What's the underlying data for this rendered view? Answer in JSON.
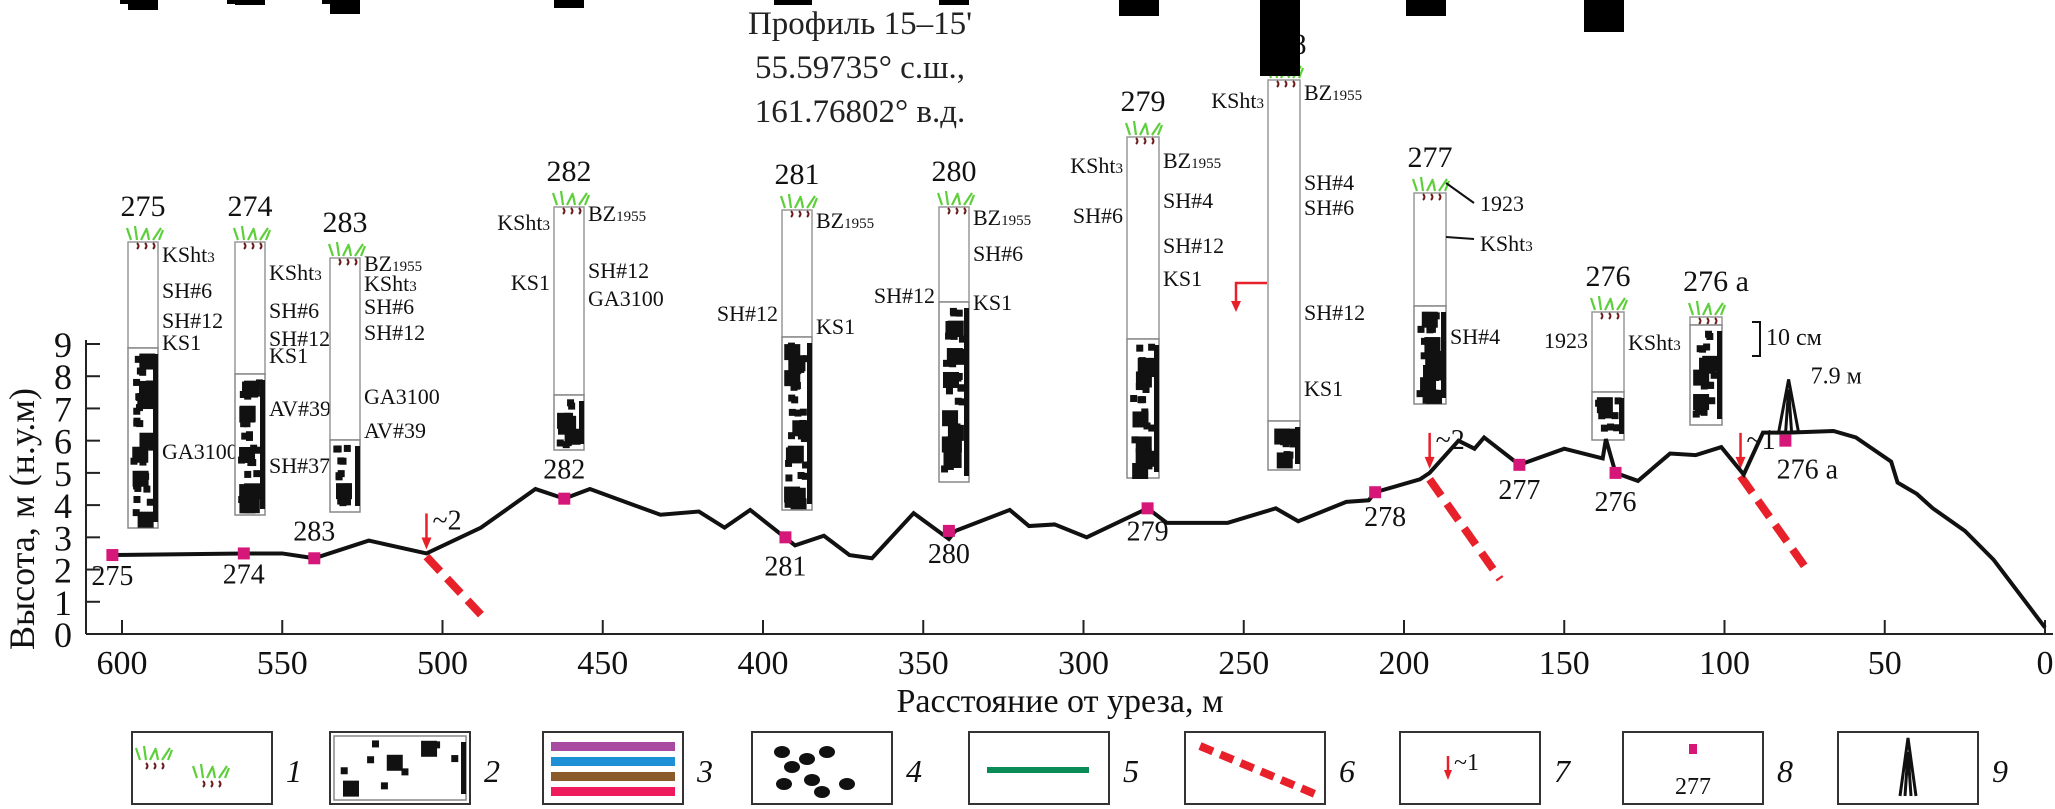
{
  "title": {
    "line1": "Профиль 15–15'",
    "line2": "55.59735° с.ш.,",
    "line3": "161.76802° в.д."
  },
  "chart_data": {
    "type": "line",
    "title": "Профиль 15–15' 55.59735° с.ш., 161.76802° в.д.",
    "xlabel": "Расстояние от уреза, м",
    "ylabel": "Высота, м (н.у.м)",
    "xlim": [
      600,
      0
    ],
    "ylim": [
      0,
      9
    ],
    "x_reversed": true,
    "xticks": [
      600,
      550,
      500,
      450,
      400,
      350,
      300,
      250,
      200,
      150,
      100,
      50,
      0
    ],
    "yticks": [
      0,
      1,
      2,
      3,
      4,
      5,
      6,
      7,
      8,
      9
    ],
    "grid": false,
    "series": [
      {
        "name": "profile",
        "color": "#111111",
        "points": [
          [
            603,
            2.45
          ],
          [
            562,
            2.5
          ],
          [
            550,
            2.5
          ],
          [
            540,
            2.35
          ],
          [
            523,
            2.9
          ],
          [
            505,
            2.5
          ],
          [
            488,
            3.3
          ],
          [
            471,
            4.5
          ],
          [
            462,
            4.2
          ],
          [
            454,
            4.5
          ],
          [
            432,
            3.7
          ],
          [
            420,
            3.8
          ],
          [
            412,
            3.3
          ],
          [
            404,
            3.85
          ],
          [
            390,
            2.75
          ],
          [
            381,
            3.05
          ],
          [
            373,
            2.45
          ],
          [
            366,
            2.35
          ],
          [
            353,
            3.75
          ],
          [
            342,
            2.95
          ],
          [
            340,
            3.2
          ],
          [
            323,
            3.85
          ],
          [
            317,
            3.35
          ],
          [
            309,
            3.4
          ],
          [
            299,
            3.0
          ],
          [
            280,
            3.9
          ],
          [
            274,
            3.45
          ],
          [
            255,
            3.45
          ],
          [
            240,
            3.9
          ],
          [
            233,
            3.5
          ],
          [
            218,
            4.1
          ],
          [
            211,
            4.15
          ],
          [
            209,
            4.4
          ],
          [
            195,
            4.8
          ],
          [
            192,
            5.0
          ],
          [
            183,
            6.0
          ],
          [
            178,
            5.75
          ],
          [
            175,
            6.1
          ],
          [
            164,
            5.25
          ],
          [
            150,
            5.75
          ],
          [
            138,
            5.45
          ],
          [
            137,
            6.05
          ],
          [
            134,
            5.0
          ],
          [
            127,
            4.75
          ],
          [
            117,
            5.6
          ],
          [
            109,
            5.55
          ],
          [
            101,
            5.8
          ],
          [
            94,
            4.95
          ],
          [
            88,
            6.25
          ],
          [
            80,
            6.25
          ],
          [
            66,
            6.3
          ],
          [
            59,
            6.1
          ],
          [
            48,
            5.35
          ],
          [
            46,
            4.7
          ],
          [
            40,
            4.35
          ],
          [
            35,
            3.9
          ],
          [
            25,
            3.2
          ],
          [
            16,
            2.3
          ],
          [
            0,
            0.2
          ]
        ]
      }
    ],
    "sites": [
      {
        "label": "275",
        "x": 603,
        "y": 2.45
      },
      {
        "label": "274",
        "x": 562,
        "y": 2.5
      },
      {
        "label": "283",
        "x": 540,
        "y": 2.35
      },
      {
        "label": "282",
        "x": 462,
        "y": 4.2
      },
      {
        "label": "281",
        "x": 393,
        "y": 3.0
      },
      {
        "label": "280",
        "x": 342,
        "y": 3.2
      },
      {
        "label": "279",
        "x": 280,
        "y": 3.9
      },
      {
        "label": "278",
        "x": 209,
        "y": 4.4
      },
      {
        "label": "277",
        "x": 164,
        "y": 5.25
      },
      {
        "label": "276",
        "x": 134,
        "y": 5.0
      },
      {
        "label": "276 а",
        "x": 81,
        "y": 6.0
      }
    ],
    "faults": [
      {
        "label": "~2",
        "x": 505,
        "y": 2.5
      },
      {
        "label": "~2",
        "x": 192,
        "y": 5.0
      },
      {
        "label": "~1",
        "x": 95,
        "y": 5.0
      }
    ],
    "peak_annotation": {
      "label": "7.9 м",
      "x": 80,
      "y": 7.9
    },
    "scale_bar": "10 см",
    "columns": [
      {
        "label": "275",
        "x": 590,
        "markers": [
          "KSht3",
          "SH#6",
          "SH#12",
          "KS1",
          "GA3100"
        ]
      },
      {
        "label": "274",
        "x": 555,
        "markers": [
          "KSht3",
          "SH#6",
          "SH#12",
          "KS1",
          "AV#39",
          "SH#37"
        ]
      },
      {
        "label": "283",
        "x": 526,
        "markers": [
          "BZ1955",
          "KSht3",
          "SH#6",
          "SH#12",
          "GA3100",
          "AV#39"
        ]
      },
      {
        "label": "282",
        "x": 462,
        "markers": [
          "BZ1955",
          "KSht3",
          "SH#12",
          "KS1",
          "GA3100"
        ]
      },
      {
        "label": "281",
        "x": 393,
        "markers": [
          "BZ1955",
          "SH#12",
          "KS1"
        ]
      },
      {
        "label": "280",
        "x": 342,
        "markers": [
          "BZ1955",
          "SH#6",
          "SH#12",
          "KS1"
        ]
      },
      {
        "label": "279",
        "x": 280,
        "markers": [
          "BZ1955",
          "KSht3",
          "SH#4",
          "SH#6",
          "SH#12",
          "KS1"
        ]
      },
      {
        "label": "278",
        "x": 231,
        "markers": [
          "BZ1955",
          "KSht3",
          "SH#4",
          "SH#6",
          "SH#12",
          "KS1"
        ]
      },
      {
        "label": "277",
        "x": 164,
        "markers": [
          "1923",
          "KSht3",
          "SH#4"
        ]
      },
      {
        "label": "276",
        "x": 134,
        "markers": [
          "1923",
          "KSht3"
        ]
      },
      {
        "label": "276 а",
        "x": 80,
        "markers": []
      }
    ],
    "legend": [
      {
        "num": "1",
        "desc": "vegetation / soil"
      },
      {
        "num": "2",
        "desc": "coarse deposits"
      },
      {
        "num": "3",
        "desc": "tephra layers",
        "colors": [
          "#a84aa0",
          "#1e90d6",
          "#8b5a2b",
          "#ee1c5c"
        ]
      },
      {
        "num": "4",
        "desc": "pebbles"
      },
      {
        "num": "5",
        "desc": "green line"
      },
      {
        "num": "6",
        "desc": "fault dashed"
      },
      {
        "num": "7",
        "desc": "fault arrow",
        "sample": "~1"
      },
      {
        "num": "8",
        "desc": "site marker",
        "sample": "277"
      },
      {
        "num": "9",
        "desc": "peak marker"
      }
    ]
  },
  "colors": {
    "profile": "#111111",
    "site": "#d6177a",
    "fault": "#e8202a",
    "green": "#0b8c56",
    "blue": "#1e8fd6",
    "red": "#e8202a",
    "brown": "#8b5a2b",
    "purple": "#a84aa0",
    "orange": "#e88a1a",
    "grass": "#5ccf3a",
    "root": "#6b1a1a"
  }
}
